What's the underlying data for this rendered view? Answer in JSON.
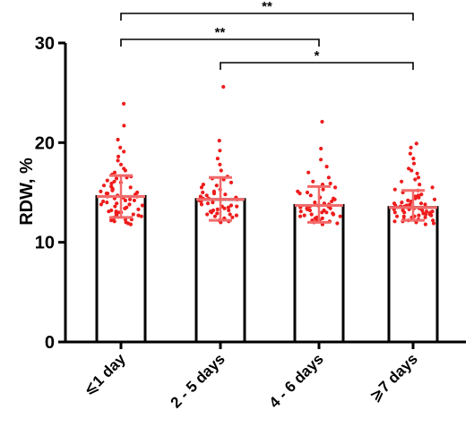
{
  "chart_data": {
    "type": "bar",
    "title": "",
    "xlabel": "",
    "ylabel": "RDW, %",
    "ylim": [
      0,
      30
    ],
    "yticks": [
      0,
      10,
      20,
      30
    ],
    "yticks_text": [
      "0",
      "10",
      "20",
      "30"
    ],
    "grid": false,
    "legend": "none",
    "error_bar_type": "mean ± SD",
    "categories": [
      "⩽1 day",
      "2 - 5 days",
      "4 - 6 days",
      "⩾7 days"
    ],
    "values": [
      14.6,
      14.3,
      13.7,
      13.5
    ],
    "error_bars": [
      {
        "low": 12.5,
        "high": 16.7
      },
      {
        "low": 12.2,
        "high": 16.5
      },
      {
        "low": 12.0,
        "high": 15.6
      },
      {
        "low": 12.2,
        "high": 15.2
      }
    ],
    "points": [
      [
        23.9,
        21.7,
        20.3,
        19.5,
        19.1,
        18.6,
        18.2,
        17.8,
        17.4,
        17.0,
        16.8,
        16.6,
        16.4,
        16.2,
        16.0,
        15.9,
        15.7,
        15.5,
        15.4,
        15.2,
        15.1,
        15.0,
        14.9,
        14.8,
        14.7,
        14.6,
        14.5,
        14.4,
        14.3,
        14.2,
        14.1,
        14.0,
        13.9,
        13.8,
        13.7,
        13.6,
        13.5,
        13.4,
        13.3,
        13.2,
        13.1,
        13.0,
        12.9,
        12.8,
        12.7,
        12.6,
        12.5,
        12.4,
        12.3,
        12.2,
        12.1,
        12.0,
        11.9,
        11.8,
        14.6,
        14.2,
        13.8,
        13.4,
        13.0,
        12.6,
        15.6,
        15.3,
        14.9,
        16.1,
        16.5,
        17.2,
        13.1,
        12.7,
        12.3
      ],
      [
        25.6,
        20.2,
        19.2,
        18.4,
        17.8,
        17.2,
        16.6,
        16.3,
        16.0,
        15.7,
        15.5,
        15.3,
        15.1,
        14.9,
        14.7,
        14.6,
        14.5,
        14.4,
        14.3,
        14.2,
        14.1,
        14.0,
        13.9,
        13.8,
        13.7,
        13.6,
        13.5,
        13.4,
        13.3,
        13.2,
        13.1,
        13.0,
        12.9,
        12.8,
        12.7,
        12.6,
        12.5,
        12.4,
        12.3,
        12.2,
        12.1,
        12.0,
        14.8,
        14.4,
        13.6,
        13.2,
        12.8,
        15.0,
        15.8,
        16.4
      ],
      [
        22.1,
        19.4,
        18.3,
        17.6,
        17.0,
        16.5,
        16.1,
        15.8,
        15.5,
        15.3,
        15.1,
        14.9,
        14.7,
        14.5,
        14.3,
        14.1,
        13.9,
        13.8,
        13.7,
        13.6,
        13.5,
        13.4,
        13.3,
        13.2,
        13.1,
        13.0,
        12.9,
        12.8,
        12.7,
        12.6,
        12.5,
        12.4,
        12.3,
        12.2,
        12.1,
        12.0,
        11.9,
        11.8,
        13.6,
        13.2,
        12.8,
        12.4,
        14.4,
        14.0,
        13.0,
        12.6,
        15.0,
        15.9,
        12.2,
        13.4
      ],
      [
        19.9,
        19.5,
        18.9,
        18.4,
        17.9,
        17.4,
        16.9,
        16.5,
        16.1,
        15.8,
        15.5,
        15.2,
        15.0,
        14.8,
        14.6,
        14.4,
        14.2,
        14.0,
        13.9,
        13.8,
        13.7,
        13.6,
        13.5,
        13.4,
        13.3,
        13.2,
        13.1,
        13.0,
        12.9,
        12.8,
        12.7,
        12.6,
        12.5,
        12.4,
        12.3,
        12.2,
        12.1,
        12.0,
        11.9,
        11.8,
        13.5,
        13.4,
        13.3,
        13.2,
        13.1,
        13.0,
        12.9,
        12.8,
        12.7,
        12.6,
        13.6,
        13.7,
        13.8,
        14.1,
        14.3,
        14.5,
        12.5,
        12.3,
        12.1,
        13.9,
        14.7,
        15.3,
        16.3,
        17.2,
        13.4,
        13.0,
        12.6,
        12.2
      ]
    ],
    "significance": [
      {
        "from": 0,
        "to": 3,
        "label": "**"
      },
      {
        "from": 0,
        "to": 2,
        "label": "**"
      },
      {
        "from": 1,
        "to": 3,
        "label": "*"
      }
    ],
    "colors": {
      "bar_fill": "#ffffff",
      "bar_stroke": "#000000",
      "points": "#ee1c1c",
      "error_bars": "#f26a6a",
      "axis": "#000000"
    }
  }
}
